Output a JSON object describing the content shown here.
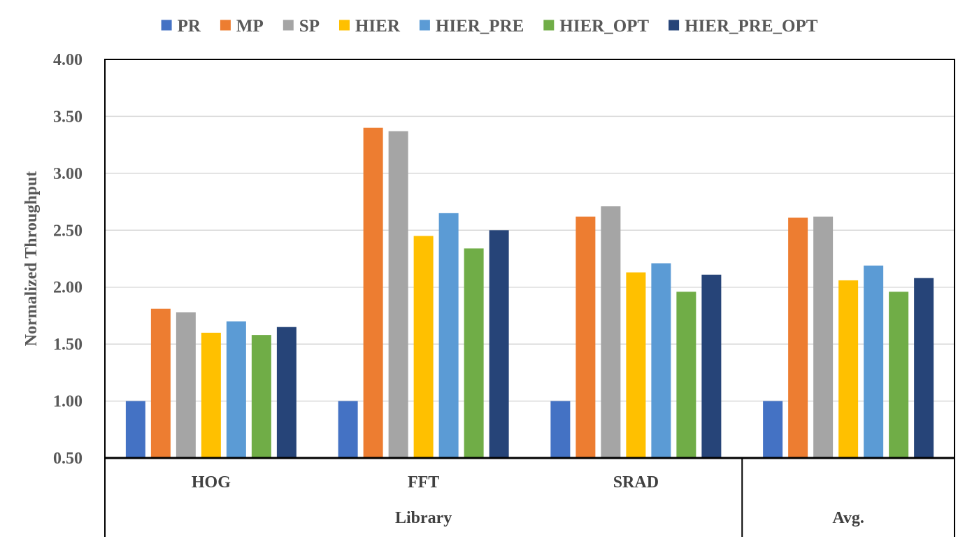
{
  "chart_data": {
    "type": "bar",
    "title": "",
    "xlabel": "",
    "ylabel": "Normalized Throughput",
    "ylim": [
      0.5,
      4.0
    ],
    "yticks": [
      "0.50",
      "1.00",
      "1.50",
      "2.00",
      "2.50",
      "3.00",
      "3.50",
      "4.00"
    ],
    "grid": true,
    "legend_position": "top",
    "categories": [
      "HOG",
      "FFT",
      "SRAD",
      ""
    ],
    "groups": [
      {
        "label": "Library",
        "categories": [
          "HOG",
          "FFT",
          "SRAD"
        ]
      },
      {
        "label": "Avg.",
        "categories": [
          ""
        ]
      }
    ],
    "series": [
      {
        "name": "PR",
        "color": "#4472C4",
        "values": [
          1.0,
          1.0,
          1.0,
          1.0
        ]
      },
      {
        "name": "MP",
        "color": "#ED7D31",
        "values": [
          1.81,
          3.4,
          2.62,
          2.61
        ]
      },
      {
        "name": "SP",
        "color": "#A5A5A5",
        "values": [
          1.78,
          3.37,
          2.71,
          2.62
        ]
      },
      {
        "name": "HIER",
        "color": "#FFC000",
        "values": [
          1.6,
          2.45,
          2.13,
          2.06
        ]
      },
      {
        "name": "HIER_PRE",
        "color": "#5B9BD5",
        "values": [
          1.7,
          2.65,
          2.21,
          2.19
        ]
      },
      {
        "name": "HIER_OPT",
        "color": "#70AD47",
        "values": [
          1.58,
          2.34,
          1.96,
          1.96
        ]
      },
      {
        "name": "HIER_PRE_OPT",
        "color": "#264478",
        "values": [
          1.65,
          2.5,
          2.11,
          2.08
        ]
      }
    ]
  }
}
